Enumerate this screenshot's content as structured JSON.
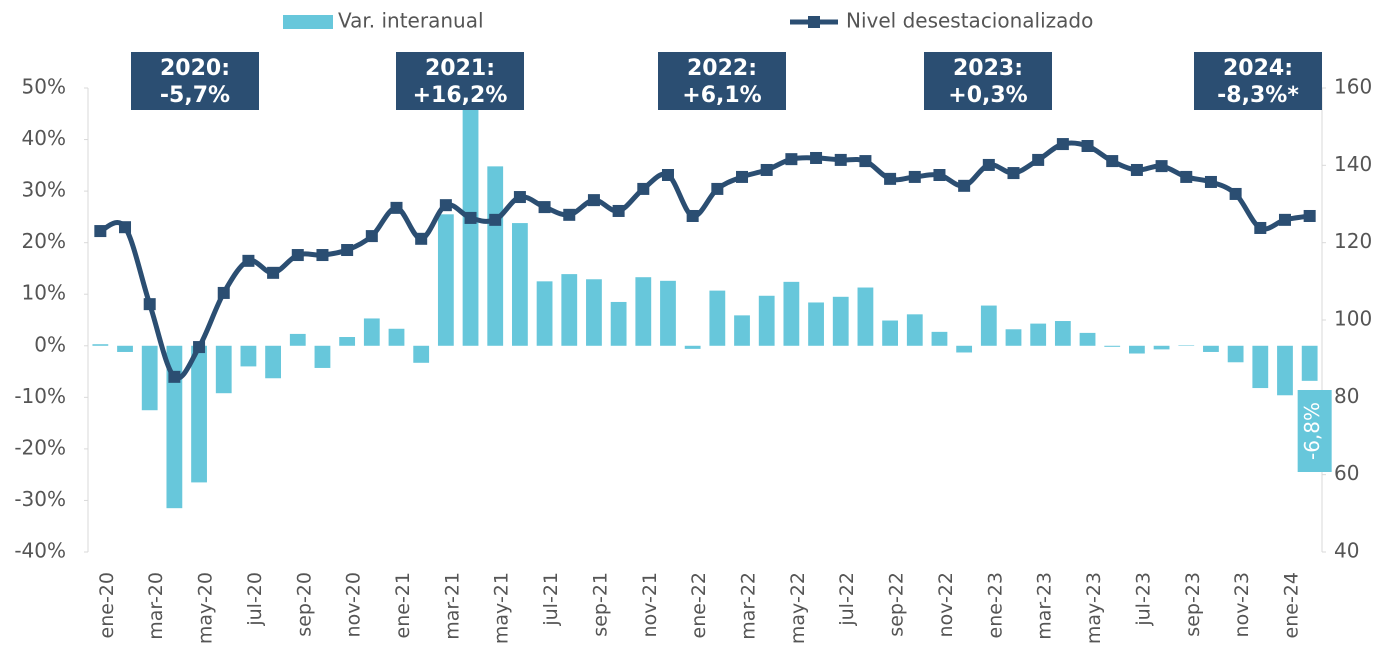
{
  "chart_data": {
    "type": "combo",
    "categories": [
      "ene-20",
      null,
      "mar-20",
      null,
      "may-20",
      null,
      "jul-20",
      null,
      "sep-20",
      null,
      "nov-20",
      null,
      "ene-21",
      null,
      "mar-21",
      null,
      "may-21",
      null,
      "jul-21",
      null,
      "sep-21",
      null,
      "nov-21",
      null,
      "ene-22",
      null,
      "mar-22",
      null,
      "may-22",
      null,
      "jul-22",
      null,
      "sep-22",
      null,
      "nov-22",
      null,
      "ene-23",
      null,
      "mar-23",
      null,
      "may-23",
      null,
      "jul-23",
      null,
      "sep-23",
      null,
      "nov-23",
      null,
      "ene-24",
      null
    ],
    "series": [
      {
        "name": "Var. interanual",
        "type": "bar",
        "color": "#67c7db",
        "values": [
          0.3,
          -1.2,
          -12.5,
          -31.5,
          -26.5,
          -9.2,
          -4,
          -6.3,
          2.3,
          -4.3,
          1.7,
          5.3,
          3.3,
          -3.3,
          25.5,
          50,
          34.8,
          23.8,
          12.5,
          13.9,
          12.9,
          8.5,
          13.3,
          12.6,
          -0.6,
          10.7,
          5.9,
          9.7,
          12.4,
          8.4,
          9.5,
          11.3,
          4.9,
          6.1,
          2.7,
          -1.3,
          7.8,
          3.2,
          4.3,
          4.8,
          2.5,
          -0.2,
          -1.5,
          -0.7,
          0.1,
          -1.2,
          -3.2,
          -8.2,
          -9.6,
          -6.8
        ],
        "value_labels": [
          null,
          null,
          null,
          null,
          null,
          null,
          null,
          null,
          null,
          null,
          null,
          null,
          null,
          null,
          null,
          null,
          null,
          null,
          null,
          null,
          null,
          null,
          null,
          null,
          null,
          null,
          null,
          null,
          null,
          null,
          null,
          null,
          null,
          null,
          null,
          null,
          null,
          null,
          null,
          null,
          null,
          null,
          null,
          null,
          null,
          null,
          null,
          null,
          null,
          "-6,8%"
        ]
      },
      {
        "name": "Nivel desestacionalizado",
        "type": "line",
        "axis": "y2",
        "color": "#2b4e72",
        "values": [
          123,
          124,
          104.1,
          85.3,
          93,
          107,
          115.3,
          112.2,
          116.8,
          116.8,
          118.1,
          121.7,
          129,
          121,
          129.7,
          126.4,
          125.9,
          131.8,
          129.2,
          127.2,
          131,
          128.2,
          133.9,
          137.5,
          126.9,
          133.9,
          137,
          138.8,
          141.6,
          141.9,
          141.4,
          141.1,
          136.5,
          137,
          137.5,
          134.7,
          140.1,
          138,
          141.4,
          145.5,
          145,
          141.1,
          138.8,
          139.8,
          137,
          135.7,
          132.6,
          123.8,
          125.9,
          126.9
        ]
      }
    ],
    "ylim": [
      -40,
      50
    ],
    "yticks": [
      {
        "value": -40,
        "label": "-40%"
      },
      {
        "value": -30,
        "label": "-30%"
      },
      {
        "value": -20,
        "label": "-20%"
      },
      {
        "value": -10,
        "label": "-10%"
      },
      {
        "value": 0,
        "label": "0%"
      },
      {
        "value": 10,
        "label": "10%"
      },
      {
        "value": 20,
        "label": "20%"
      },
      {
        "value": 30,
        "label": "30%"
      },
      {
        "value": 40,
        "label": "40%"
      },
      {
        "value": 50,
        "label": "50%"
      }
    ],
    "y2lim": [
      40,
      160
    ],
    "y2ticks": [
      40,
      60,
      80,
      100,
      120,
      140,
      160
    ],
    "grid": false,
    "legend": "top",
    "annotations": [
      {
        "year": "2020:",
        "change": "-5,7%"
      },
      {
        "year": "2021:",
        "change": "+16,2%"
      },
      {
        "year": "2022:",
        "change": "+6,1%"
      },
      {
        "year": "2023:",
        "change": "+0,3%"
      },
      {
        "year": "2024:",
        "change": "-8,3%*"
      }
    ]
  }
}
